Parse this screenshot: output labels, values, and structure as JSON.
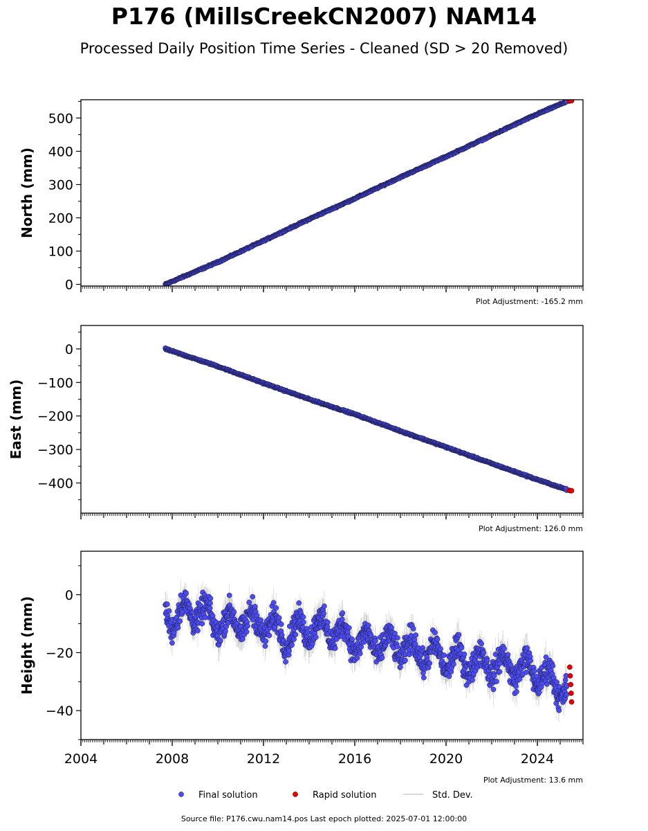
{
  "title": "P176 (MillsCreekCN2007) NAM14",
  "subtitle": "Processed Daily Position Time Series - Cleaned (SD > 20 Removed)",
  "colors": {
    "final": "#4b4bf0",
    "rapid": "#e60000",
    "std": "#aaaaaa"
  },
  "legend": {
    "final": "Final solution",
    "rapid": "Rapid solution",
    "std": "Std. Dev."
  },
  "footer": "Source file: P176.cwu.nam14.pos  Last epoch plotted: 2025-07-01 12:00:00",
  "chart_data": [
    {
      "type": "scatter",
      "ylabel": "North (mm)",
      "adjustment": "Plot Adjustment: -165.2 mm",
      "xlim": [
        2004,
        2026
      ],
      "ylim": [
        -5,
        555
      ],
      "yticks": [
        0,
        100,
        200,
        300,
        400,
        500
      ],
      "ytick_labels": [
        "0",
        "100",
        "200",
        "300",
        "400",
        "500"
      ],
      "series": [
        {
          "x": [
            2007.7,
            2010,
            2012,
            2014,
            2016,
            2018,
            2020,
            2022,
            2024,
            2025.3
          ],
          "y": [
            0,
            67,
            131,
            196,
            258,
            322,
            384,
            448,
            512,
            550
          ]
        },
        {
          "x": [
            2025.4,
            2025.45,
            2025.5
          ],
          "y": [
            551,
            552,
            552
          ]
        }
      ]
    },
    {
      "type": "scatter",
      "ylabel": "East (mm)",
      "adjustment": "Plot Adjustment: 126.0 mm",
      "xlim": [
        2004,
        2026
      ],
      "ylim": [
        -490,
        70
      ],
      "yticks": [
        0,
        -100,
        -200,
        -300,
        -400
      ],
      "ytick_labels": [
        "0",
        "−100",
        "−200",
        "−300",
        "−400"
      ],
      "series": [
        {
          "x": [
            2007.7,
            2010,
            2012,
            2014,
            2016,
            2018,
            2020,
            2022,
            2024,
            2025.3
          ],
          "y": [
            0,
            -52,
            -102,
            -150,
            -195,
            -245,
            -293,
            -342,
            -390,
            -420
          ]
        },
        {
          "x": [
            2025.4,
            2025.45,
            2025.5
          ],
          "y": [
            -422,
            -423,
            -423
          ]
        }
      ]
    },
    {
      "type": "scatter",
      "ylabel": "Height (mm)",
      "adjustment": "Plot Adjustment: 13.6 mm",
      "xlim": [
        2004,
        2026
      ],
      "ylim": [
        -50,
        15
      ],
      "yticks": [
        0,
        -20,
        -40
      ],
      "ytick_labels": [
        "0",
        "−20",
        "−40"
      ],
      "xticks": [
        2004,
        2008,
        2012,
        2016,
        2020,
        2024
      ],
      "xtick_labels": [
        "2004",
        "2008",
        "2012",
        "2016",
        "2020",
        "2024"
      ],
      "series": [
        {
          "x": [
            2007.7,
            2008,
            2009,
            2010,
            2011,
            2012,
            2013,
            2014,
            2015,
            2016,
            2017,
            2018,
            2019,
            2020,
            2021,
            2022,
            2023,
            2024,
            2025.3
          ],
          "y": [
            -6,
            -8,
            -5,
            -10,
            -9,
            -10,
            -14,
            -11,
            -12,
            -16,
            -17,
            -18,
            -20,
            -22,
            -23,
            -24,
            -25,
            -27,
            -33
          ]
        },
        {
          "x": [
            2025.42,
            2025.44,
            2025.46,
            2025.48,
            2025.5
          ],
          "y": [
            -25,
            -28,
            -31,
            -34,
            -37
          ]
        }
      ]
    }
  ]
}
